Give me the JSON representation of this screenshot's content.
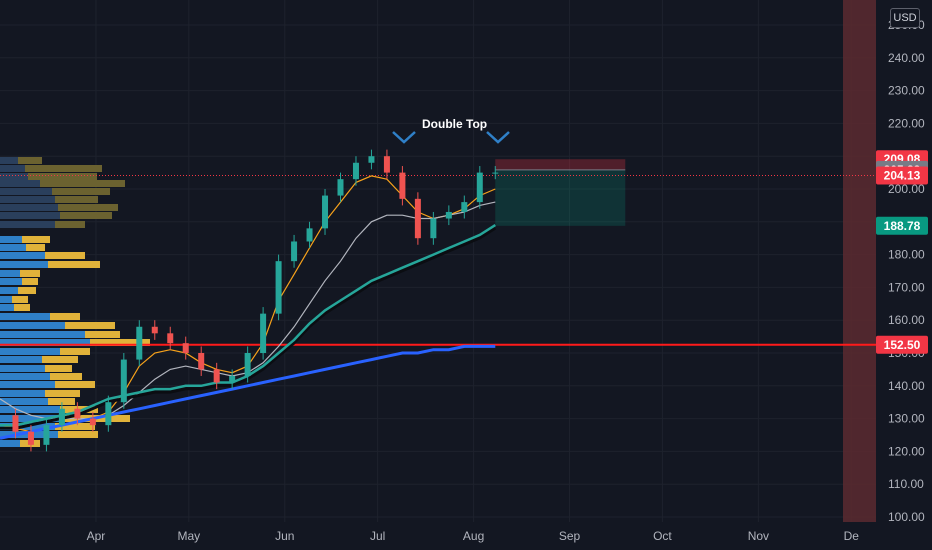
{
  "chart_data": {
    "type": "candlestick",
    "currency": "USD",
    "annotation": "Double Top",
    "y_axis": {
      "ticks": [
        "100.00",
        "110.00",
        "120.00",
        "130.00",
        "140.00",
        "150.00",
        "160.00",
        "170.00",
        "180.00",
        "190.00",
        "200.00",
        "210.00",
        "220.00",
        "230.00",
        "240.00",
        "250.00"
      ],
      "range": [
        100,
        250
      ]
    },
    "x_axis": {
      "ticks": [
        "Apr",
        "May",
        "Jun",
        "Jul",
        "Aug",
        "Sep",
        "Oct",
        "Nov",
        "De"
      ],
      "range": [
        "2023-03-01",
        "2023-12-09"
      ]
    },
    "horizontal_levels": [
      {
        "label": "209.08",
        "value": 209.08,
        "color": "#f23645"
      },
      {
        "label": "205.83",
        "value": 205.83,
        "color": "#787b86"
      },
      {
        "label": "204.13",
        "value": 204.13,
        "color": "#f23645"
      },
      {
        "label": "188.78",
        "value": 188.78,
        "color": "#089981"
      },
      {
        "label": "152.50",
        "value": 152.5,
        "color": "#f23645"
      }
    ],
    "short_position": {
      "start": "2023-08-08",
      "end": "2023-09-19",
      "entry": 205.83,
      "stop": 209.08,
      "target": 188.78
    },
    "price_points": {
      "x": [
        "2023-03-01",
        "2023-03-06",
        "2023-03-11",
        "2023-03-16",
        "2023-03-21",
        "2023-03-26",
        "2023-03-31",
        "2023-04-05",
        "2023-04-10",
        "2023-04-15",
        "2023-04-20",
        "2023-04-25",
        "2023-04-30",
        "2023-05-05",
        "2023-05-10",
        "2023-05-15",
        "2023-05-20",
        "2023-05-25",
        "2023-05-30",
        "2023-06-04",
        "2023-06-09",
        "2023-06-14",
        "2023-06-19",
        "2023-06-24",
        "2023-06-29",
        "2023-07-04",
        "2023-07-09",
        "2023-07-14",
        "2023-07-19",
        "2023-07-24",
        "2023-07-29",
        "2023-08-03",
        "2023-08-08"
      ],
      "close": [
        131,
        126,
        122,
        128,
        133,
        130,
        128,
        135,
        148,
        158,
        156,
        153,
        150,
        145,
        141,
        143,
        150,
        162,
        178,
        184,
        188,
        198,
        203,
        208,
        210,
        205,
        197,
        185,
        191,
        193,
        196,
        205,
        205
      ]
    },
    "series": [
      {
        "kind": "ma-short",
        "color": "#f7a21b",
        "values": [
          128,
          127,
          126,
          127,
          128,
          129,
          130,
          132,
          138,
          146,
          150,
          151,
          150,
          147,
          145,
          144,
          146,
          153,
          166,
          174,
          182,
          190,
          196,
          202,
          204,
          203,
          198,
          193,
          191,
          192,
          194,
          198,
          200
        ]
      },
      {
        "kind": "ma-medium",
        "color": "#b2b5be",
        "values": [
          136,
          133,
          131,
          130,
          130,
          130,
          130,
          131,
          134,
          138,
          142,
          145,
          146,
          145,
          144,
          143,
          144,
          147,
          152,
          158,
          165,
          172,
          178,
          185,
          190,
          192,
          192,
          191,
          191,
          192,
          193,
          195,
          196
        ]
      },
      {
        "kind": "ma-long",
        "color": "#26a69a",
        "values": [
          128,
          128,
          129,
          130,
          131,
          132,
          134,
          136,
          137,
          138,
          139,
          139,
          140,
          140,
          141,
          141,
          143,
          146,
          150,
          154,
          159,
          163,
          166,
          169,
          172,
          174,
          176,
          178,
          180,
          182,
          184,
          186,
          189
        ]
      },
      {
        "kind": "ma-xlong",
        "color": "#2962ff",
        "values": [
          124,
          125,
          126,
          127,
          128,
          129,
          130,
          131,
          132,
          133,
          134,
          135,
          136,
          137,
          138,
          139,
          140,
          141,
          142,
          143,
          144,
          145,
          146,
          147,
          148,
          149,
          150,
          150,
          151,
          151,
          152,
          152,
          152
        ]
      }
    ],
    "volume_profile_note_free": true
  }
}
